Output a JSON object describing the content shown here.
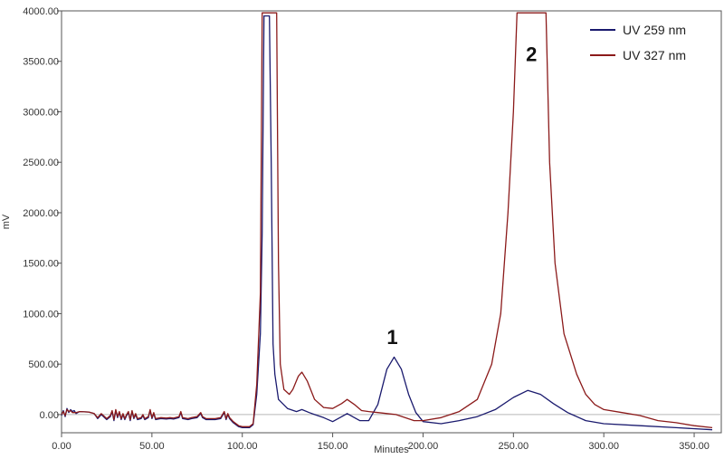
{
  "chart_data": {
    "type": "line",
    "xlabel": "Minutes",
    "ylabel": "mV",
    "xlim": [
      0,
      365
    ],
    "ylim": [
      -180,
      4000
    ],
    "x_ticks": [
      "0.00",
      "50.00",
      "100.00",
      "150.00",
      "200.00",
      "250.00",
      "300.00",
      "350.00"
    ],
    "y_ticks": [
      "0.00",
      "500.00",
      "1000.00",
      "1500.00",
      "2000.00",
      "2500.00",
      "3000.00",
      "3500.00",
      "4000.00"
    ],
    "baseline": 0,
    "grid": false,
    "legend_position": "top-right",
    "series": [
      {
        "name": "UV 259 nm",
        "color": "#1a1a6e",
        "points": [
          [
            0,
            -10
          ],
          [
            1,
            40
          ],
          [
            2,
            -20
          ],
          [
            3,
            60
          ],
          [
            4,
            20
          ],
          [
            5,
            50
          ],
          [
            6,
            30
          ],
          [
            7,
            40
          ],
          [
            8,
            10
          ],
          [
            10,
            30
          ],
          [
            15,
            25
          ],
          [
            18,
            10
          ],
          [
            20,
            -40
          ],
          [
            22,
            0
          ],
          [
            25,
            -50
          ],
          [
            27,
            -20
          ],
          [
            28,
            30
          ],
          [
            29,
            -60
          ],
          [
            30,
            40
          ],
          [
            31,
            -30
          ],
          [
            32,
            20
          ],
          [
            33,
            -50
          ],
          [
            34,
            0
          ],
          [
            35,
            -50
          ],
          [
            36,
            -10
          ],
          [
            37,
            20
          ],
          [
            38,
            -60
          ],
          [
            39,
            30
          ],
          [
            40,
            -40
          ],
          [
            41,
            0
          ],
          [
            42,
            -50
          ],
          [
            44,
            -40
          ],
          [
            45,
            -10
          ],
          [
            46,
            -50
          ],
          [
            48,
            -30
          ],
          [
            49,
            40
          ],
          [
            50,
            -40
          ],
          [
            51,
            10
          ],
          [
            52,
            -50
          ],
          [
            55,
            -40
          ],
          [
            58,
            -45
          ],
          [
            60,
            -40
          ],
          [
            62,
            -45
          ],
          [
            65,
            -30
          ],
          [
            66,
            20
          ],
          [
            67,
            -40
          ],
          [
            70,
            -50
          ],
          [
            72,
            -40
          ],
          [
            75,
            -30
          ],
          [
            77,
            10
          ],
          [
            78,
            -30
          ],
          [
            80,
            -50
          ],
          [
            85,
            -50
          ],
          [
            88,
            -40
          ],
          [
            90,
            20
          ],
          [
            91,
            -50
          ],
          [
            92,
            0
          ],
          [
            93,
            -40
          ],
          [
            95,
            -80
          ],
          [
            98,
            -120
          ],
          [
            100,
            -130
          ],
          [
            104,
            -130
          ],
          [
            106,
            -100
          ],
          [
            108,
            200
          ],
          [
            110,
            800
          ],
          [
            111,
            1800
          ],
          [
            112,
            3950
          ],
          [
            115,
            3950
          ],
          [
            116,
            2500
          ],
          [
            117,
            700
          ],
          [
            118,
            400
          ],
          [
            120,
            150
          ],
          [
            125,
            60
          ],
          [
            130,
            30
          ],
          [
            133,
            50
          ],
          [
            137,
            20
          ],
          [
            140,
            0
          ],
          [
            145,
            -30
          ],
          [
            150,
            -70
          ],
          [
            155,
            -20
          ],
          [
            158,
            10
          ],
          [
            162,
            -30
          ],
          [
            165,
            -60
          ],
          [
            170,
            -60
          ],
          [
            175,
            100
          ],
          [
            180,
            450
          ],
          [
            184,
            570
          ],
          [
            188,
            450
          ],
          [
            192,
            200
          ],
          [
            196,
            20
          ],
          [
            200,
            -70
          ],
          [
            210,
            -90
          ],
          [
            220,
            -60
          ],
          [
            230,
            -20
          ],
          [
            240,
            50
          ],
          [
            250,
            170
          ],
          [
            258,
            240
          ],
          [
            265,
            200
          ],
          [
            272,
            110
          ],
          [
            280,
            20
          ],
          [
            290,
            -60
          ],
          [
            300,
            -90
          ],
          [
            320,
            -110
          ],
          [
            340,
            -130
          ],
          [
            360,
            -150
          ]
        ]
      },
      {
        "name": "UV 327 nm",
        "color": "#8b1a1a",
        "points": [
          [
            0,
            0
          ],
          [
            1,
            30
          ],
          [
            2,
            -10
          ],
          [
            3,
            50
          ],
          [
            4,
            30
          ],
          [
            5,
            40
          ],
          [
            6,
            20
          ],
          [
            8,
            20
          ],
          [
            10,
            30
          ],
          [
            15,
            25
          ],
          [
            18,
            10
          ],
          [
            20,
            -30
          ],
          [
            22,
            10
          ],
          [
            25,
            -40
          ],
          [
            27,
            -10
          ],
          [
            28,
            40
          ],
          [
            29,
            -50
          ],
          [
            30,
            50
          ],
          [
            31,
            -20
          ],
          [
            32,
            30
          ],
          [
            33,
            -40
          ],
          [
            34,
            10
          ],
          [
            35,
            -40
          ],
          [
            36,
            0
          ],
          [
            37,
            30
          ],
          [
            38,
            -50
          ],
          [
            39,
            40
          ],
          [
            40,
            -30
          ],
          [
            41,
            10
          ],
          [
            42,
            -40
          ],
          [
            44,
            -30
          ],
          [
            45,
            0
          ],
          [
            46,
            -40
          ],
          [
            48,
            -20
          ],
          [
            49,
            50
          ],
          [
            50,
            -30
          ],
          [
            51,
            20
          ],
          [
            52,
            -40
          ],
          [
            55,
            -30
          ],
          [
            58,
            -35
          ],
          [
            60,
            -30
          ],
          [
            62,
            -35
          ],
          [
            65,
            -20
          ],
          [
            66,
            30
          ],
          [
            67,
            -30
          ],
          [
            70,
            -40
          ],
          [
            72,
            -30
          ],
          [
            75,
            -20
          ],
          [
            77,
            20
          ],
          [
            78,
            -20
          ],
          [
            80,
            -40
          ],
          [
            85,
            -40
          ],
          [
            88,
            -30
          ],
          [
            90,
            30
          ],
          [
            91,
            -40
          ],
          [
            92,
            10
          ],
          [
            93,
            -30
          ],
          [
            95,
            -70
          ],
          [
            98,
            -110
          ],
          [
            100,
            -120
          ],
          [
            104,
            -120
          ],
          [
            106,
            -90
          ],
          [
            108,
            300
          ],
          [
            110,
            1200
          ],
          [
            111,
            3980
          ],
          [
            119,
            3980
          ],
          [
            120,
            1500
          ],
          [
            121,
            500
          ],
          [
            123,
            250
          ],
          [
            126,
            200
          ],
          [
            128,
            250
          ],
          [
            131,
            380
          ],
          [
            133,
            420
          ],
          [
            136,
            330
          ],
          [
            140,
            150
          ],
          [
            145,
            70
          ],
          [
            150,
            60
          ],
          [
            155,
            110
          ],
          [
            158,
            150
          ],
          [
            162,
            100
          ],
          [
            166,
            40
          ],
          [
            170,
            30
          ],
          [
            175,
            20
          ],
          [
            180,
            10
          ],
          [
            185,
            0
          ],
          [
            190,
            -30
          ],
          [
            195,
            -60
          ],
          [
            200,
            -60
          ],
          [
            210,
            -30
          ],
          [
            220,
            30
          ],
          [
            230,
            150
          ],
          [
            238,
            500
          ],
          [
            243,
            1000
          ],
          [
            247,
            2000
          ],
          [
            250,
            3000
          ],
          [
            252,
            3980
          ],
          [
            268,
            3980
          ],
          [
            270,
            2500
          ],
          [
            273,
            1500
          ],
          [
            278,
            800
          ],
          [
            285,
            400
          ],
          [
            290,
            200
          ],
          [
            295,
            100
          ],
          [
            300,
            50
          ],
          [
            310,
            20
          ],
          [
            320,
            -10
          ],
          [
            330,
            -60
          ],
          [
            340,
            -80
          ],
          [
            350,
            -110
          ],
          [
            360,
            -130
          ]
        ]
      }
    ],
    "annotations": [
      {
        "label": "1",
        "x": 183,
        "y": 700
      },
      {
        "label": "2",
        "x": 260,
        "y": 3500
      }
    ]
  }
}
